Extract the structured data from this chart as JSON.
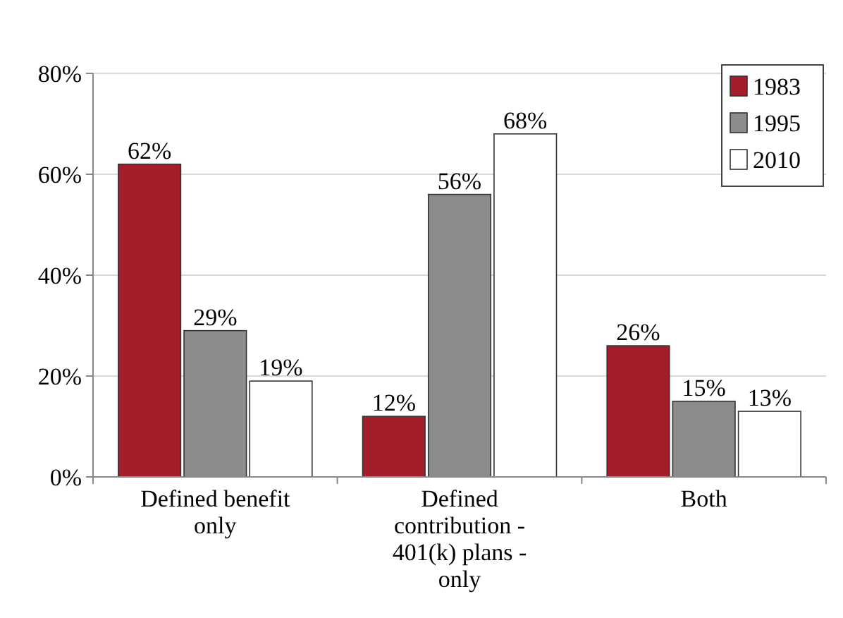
{
  "chart_data": {
    "type": "bar",
    "categories": [
      "Defined benefit only",
      "Defined contribution - 401(k) plans - only",
      "Both"
    ],
    "series": [
      {
        "name": "1983",
        "color": "#a31d2a",
        "values": [
          62,
          12,
          26
        ],
        "value_labels": [
          "62%",
          "12%",
          "26%"
        ]
      },
      {
        "name": "1995",
        "color": "#8c8c8c",
        "values": [
          29,
          56,
          15
        ],
        "value_labels": [
          "29%",
          "56%",
          "15%"
        ]
      },
      {
        "name": "2010",
        "color": "#ffffff",
        "values": [
          19,
          68,
          13
        ],
        "value_labels": [
          "19%",
          "68%",
          "13%"
        ]
      }
    ],
    "ylim": [
      0,
      80
    ],
    "yticks": [
      {
        "value": 0,
        "label": "0%"
      },
      {
        "value": 20,
        "label": "20%"
      },
      {
        "value": 40,
        "label": "40%"
      },
      {
        "value": 60,
        "label": "60%"
      },
      {
        "value": 80,
        "label": "80%"
      }
    ],
    "grid": "y",
    "legend": "top right"
  }
}
